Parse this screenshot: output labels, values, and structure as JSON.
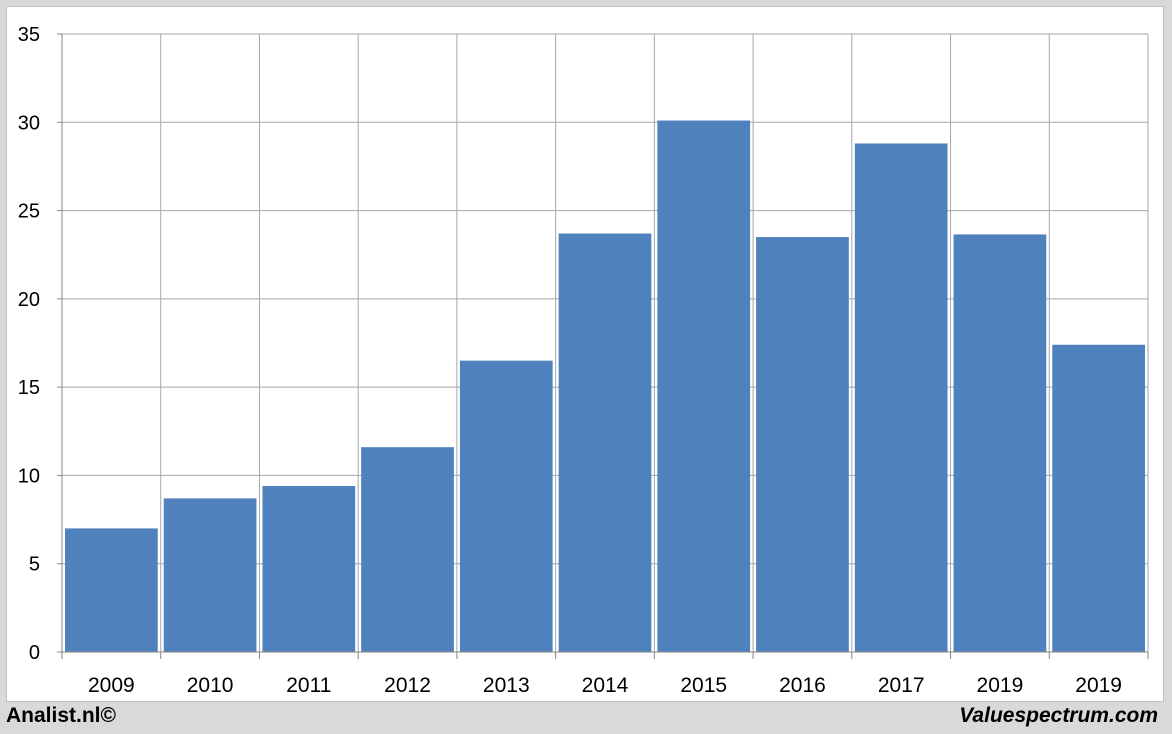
{
  "chart_data": {
    "type": "bar",
    "categories": [
      "2009",
      "2010",
      "2011",
      "2012",
      "2013",
      "2014",
      "2015",
      "2016",
      "2017",
      "2019",
      "2019"
    ],
    "values": [
      7.0,
      8.7,
      9.4,
      11.6,
      16.5,
      23.7,
      30.1,
      23.5,
      28.8,
      23.65,
      17.4
    ],
    "ylim": [
      0,
      35
    ],
    "yticks": [
      0,
      5,
      10,
      15,
      20,
      25,
      30,
      35
    ],
    "title": "",
    "xlabel": "",
    "ylabel": "",
    "grid": true,
    "bar_color": "#4f81bd"
  },
  "footer": {
    "left": "Analist.nl©",
    "right": "Valuespectrum.com"
  }
}
